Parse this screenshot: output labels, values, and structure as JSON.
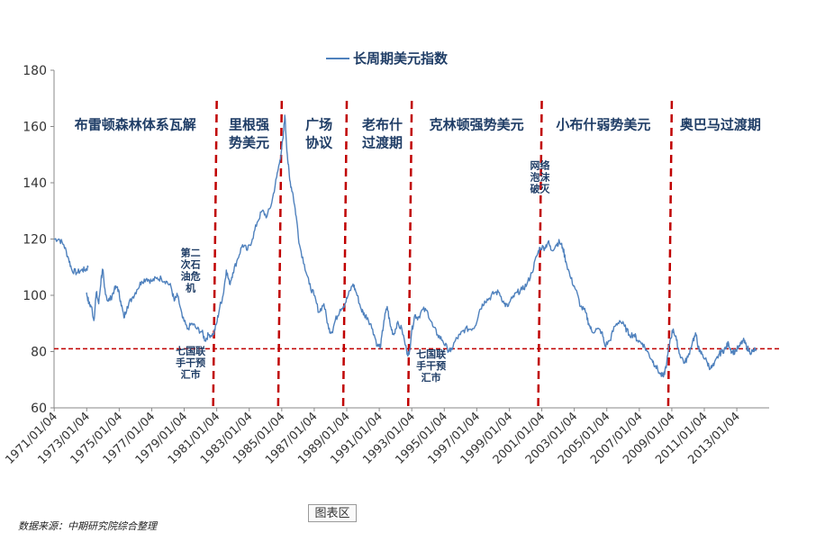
{
  "chart_data": {
    "type": "line",
    "title": "长周期美元指数",
    "xlabel": "",
    "ylabel": "",
    "ylim": [
      60,
      180
    ],
    "yticks": [
      60,
      80,
      100,
      120,
      140,
      160,
      180
    ],
    "xlim": [
      1971.0,
      2015.0
    ],
    "xtick_labels": [
      "1971/01/04",
      "1973/01/04",
      "1975/01/04",
      "1977/01/04",
      "1979/01/04",
      "1981/01/04",
      "1983/01/04",
      "1985/01/04",
      "1987/01/04",
      "1989/01/04",
      "1991/01/04",
      "1993/01/04",
      "1995/01/04",
      "1997/01/04",
      "1999/01/04",
      "2001/01/04",
      "2003/01/04",
      "2005/01/04",
      "2007/01/04",
      "2009/01/04",
      "2011/01/04",
      "2013/01/04"
    ],
    "line_color": "#4f81bd",
    "divider_color": "#c00000",
    "reference_line": {
      "y": 81,
      "color": "#c00000"
    },
    "dividers": [
      1980.9,
      1984.9,
      1988.9,
      1992.9,
      2000.9,
      2008.9
    ],
    "series": [
      {
        "name": "长周期美元指数",
        "segments": [
          [
            [
              1971.0,
              120
            ],
            [
              1971.3,
              120
            ],
            [
              1971.6,
              118
            ],
            [
              1971.9,
              113
            ],
            [
              1972.1,
              109
            ],
            [
              1972.4,
              108
            ],
            [
              1972.7,
              109
            ],
            [
              1972.9,
              109
            ],
            [
              1973.1,
              110
            ]
          ],
          [
            [
              1973.0,
              101
            ],
            [
              1973.15,
              97
            ],
            [
              1973.3,
              96
            ],
            [
              1973.45,
              91
            ],
            [
              1973.6,
              101
            ],
            [
              1973.75,
              97
            ],
            [
              1973.9,
              106
            ],
            [
              1974.0,
              109
            ],
            [
              1974.1,
              103
            ],
            [
              1974.3,
              98
            ],
            [
              1974.5,
              99
            ],
            [
              1974.7,
              102
            ],
            [
              1974.9,
              103
            ],
            [
              1975.1,
              98
            ],
            [
              1975.3,
              92
            ],
            [
              1975.5,
              96
            ],
            [
              1975.8,
              99
            ],
            [
              1976.1,
              102
            ],
            [
              1976.4,
              105
            ],
            [
              1976.7,
              106
            ],
            [
              1977.0,
              105
            ],
            [
              1977.3,
              106
            ],
            [
              1977.6,
              106
            ],
            [
              1977.9,
              105
            ],
            [
              1978.2,
              103
            ],
            [
              1978.4,
              98
            ],
            [
              1978.6,
              100
            ],
            [
              1978.9,
              92
            ],
            [
              1979.2,
              88
            ],
            [
              1979.5,
              90
            ],
            [
              1979.8,
              88
            ],
            [
              1980.1,
              87
            ],
            [
              1980.3,
              84
            ],
            [
              1980.5,
              86
            ],
            [
              1980.8,
              86
            ],
            [
              1981.0,
              90
            ],
            [
              1981.2,
              96
            ],
            [
              1981.4,
              100
            ],
            [
              1981.6,
              109
            ],
            [
              1981.8,
              104
            ],
            [
              1982.0,
              108
            ],
            [
              1982.3,
              113
            ],
            [
              1982.6,
              118
            ],
            [
              1982.9,
              116
            ],
            [
              1983.2,
              120
            ],
            [
              1983.5,
              126
            ],
            [
              1983.8,
              130
            ],
            [
              1984.1,
              128
            ],
            [
              1984.4,
              133
            ],
            [
              1984.7,
              142
            ],
            [
              1984.9,
              148
            ],
            [
              1985.1,
              156
            ],
            [
              1985.2,
              164
            ],
            [
              1985.35,
              150
            ],
            [
              1985.5,
              141
            ],
            [
              1985.7,
              136
            ],
            [
              1985.9,
              128
            ],
            [
              1986.1,
              118
            ],
            [
              1986.4,
              111
            ],
            [
              1986.7,
              104
            ],
            [
              1987.0,
              100
            ],
            [
              1987.3,
              94
            ],
            [
              1987.6,
              97
            ],
            [
              1987.9,
              88
            ],
            [
              1988.1,
              87
            ],
            [
              1988.3,
              91
            ],
            [
              1988.6,
              95
            ],
            [
              1988.9,
              97
            ],
            [
              1989.1,
              100
            ],
            [
              1989.4,
              104
            ],
            [
              1989.6,
              101
            ],
            [
              1989.9,
              95
            ],
            [
              1990.1,
              93
            ],
            [
              1990.3,
              92
            ],
            [
              1990.6,
              88
            ],
            [
              1990.9,
              82
            ],
            [
              1991.1,
              82
            ],
            [
              1991.3,
              91
            ],
            [
              1991.5,
              96
            ],
            [
              1991.7,
              89
            ],
            [
              1991.9,
              86
            ],
            [
              1992.1,
              90
            ],
            [
              1992.4,
              88
            ],
            [
              1992.7,
              80
            ],
            [
              1992.85,
              79
            ],
            [
              1993.0,
              87
            ],
            [
              1993.2,
              93
            ],
            [
              1993.4,
              92
            ],
            [
              1993.7,
              95
            ],
            [
              1994.0,
              94
            ],
            [
              1994.3,
              89
            ],
            [
              1994.6,
              86
            ],
            [
              1994.9,
              84
            ],
            [
              1995.2,
              81
            ],
            [
              1995.4,
              80
            ],
            [
              1995.7,
              84
            ],
            [
              1996.0,
              86
            ],
            [
              1996.3,
              88
            ],
            [
              1996.6,
              88
            ],
            [
              1996.9,
              89
            ],
            [
              1997.2,
              95
            ],
            [
              1997.5,
              98
            ],
            [
              1997.8,
              99
            ],
            [
              1998.1,
              101
            ],
            [
              1998.4,
              101
            ],
            [
              1998.7,
              97
            ],
            [
              1998.9,
              96
            ],
            [
              1999.2,
              99
            ],
            [
              1999.5,
              101
            ],
            [
              1999.8,
              102
            ],
            [
              2000.1,
              104
            ],
            [
              2000.4,
              108
            ],
            [
              2000.7,
              114
            ],
            [
              2000.9,
              117
            ],
            [
              2001.2,
              117
            ],
            [
              2001.4,
              119
            ],
            [
              2001.6,
              116
            ],
            [
              2001.9,
              118
            ],
            [
              2002.1,
              119
            ],
            [
              2002.3,
              117
            ],
            [
              2002.5,
              112
            ],
            [
              2002.8,
              106
            ],
            [
              2003.1,
              102
            ],
            [
              2003.4,
              96
            ],
            [
              2003.7,
              94
            ],
            [
              2003.9,
              90
            ],
            [
              2004.1,
              87
            ],
            [
              2004.4,
              88
            ],
            [
              2004.7,
              87
            ],
            [
              2004.9,
              82
            ],
            [
              2005.2,
              84
            ],
            [
              2005.5,
              89
            ],
            [
              2005.8,
              91
            ],
            [
              2006.1,
              89
            ],
            [
              2006.4,
              86
            ],
            [
              2006.7,
              86
            ],
            [
              2006.9,
              84
            ],
            [
              2007.2,
              83
            ],
            [
              2007.5,
              80
            ],
            [
              2007.8,
              77
            ],
            [
              2008.0,
              75
            ],
            [
              2008.3,
              72
            ],
            [
              2008.5,
              71
            ],
            [
              2008.7,
              76
            ],
            [
              2008.9,
              84
            ],
            [
              2009.1,
              88
            ],
            [
              2009.3,
              84
            ],
            [
              2009.5,
              79
            ],
            [
              2009.8,
              76
            ],
            [
              2010.0,
              78
            ],
            [
              2010.3,
              84
            ],
            [
              2010.5,
              86
            ],
            [
              2010.7,
              80
            ],
            [
              2010.9,
              79
            ],
            [
              2011.2,
              76
            ],
            [
              2011.4,
              74
            ],
            [
              2011.6,
              75
            ],
            [
              2011.9,
              79
            ],
            [
              2012.1,
              80
            ],
            [
              2012.3,
              81
            ],
            [
              2012.5,
              83
            ],
            [
              2012.7,
              80
            ],
            [
              2012.9,
              80
            ],
            [
              2013.2,
              82
            ],
            [
              2013.4,
              84
            ],
            [
              2013.6,
              82
            ],
            [
              2013.8,
              80
            ],
            [
              2014.0,
              80
            ],
            [
              2014.2,
              81
            ]
          ]
        ]
      }
    ],
    "period_labels": [
      {
        "lines": [
          "布雷顿森林体系瓦解"
        ],
        "x": 1976.0,
        "y": 159
      },
      {
        "lines": [
          "里根强",
          "势美元"
        ],
        "x": 1983.0,
        "y": 159
      },
      {
        "lines": [
          "广场",
          "协议"
        ],
        "x": 1987.3,
        "y": 159
      },
      {
        "lines": [
          "老布什",
          "过渡期"
        ],
        "x": 1991.2,
        "y": 159
      },
      {
        "lines": [
          "克林顿强势美元"
        ],
        "x": 1997.0,
        "y": 159
      },
      {
        "lines": [
          "小布什弱势美元"
        ],
        "x": 2004.8,
        "y": 159
      },
      {
        "lines": [
          "奥巴马过渡期"
        ],
        "x": 2012.0,
        "y": 159
      }
    ],
    "annotations": [
      {
        "lines": [
          "第二",
          "次石",
          "油危",
          "机"
        ],
        "x": 1979.4,
        "y": 114
      },
      {
        "lines": [
          "七国联",
          "手干预",
          "汇市"
        ],
        "x": 1979.4,
        "y": 79
      },
      {
        "lines": [
          "七国联",
          "手干预",
          "汇市"
        ],
        "x": 1994.2,
        "y": 78
      },
      {
        "lines": [
          "网络",
          "泡沫",
          "破灭"
        ],
        "x": 2000.9,
        "y": 145
      }
    ]
  },
  "footer": {
    "source": "数据来源：中期研究院综合整理",
    "area_label": "图表区"
  }
}
